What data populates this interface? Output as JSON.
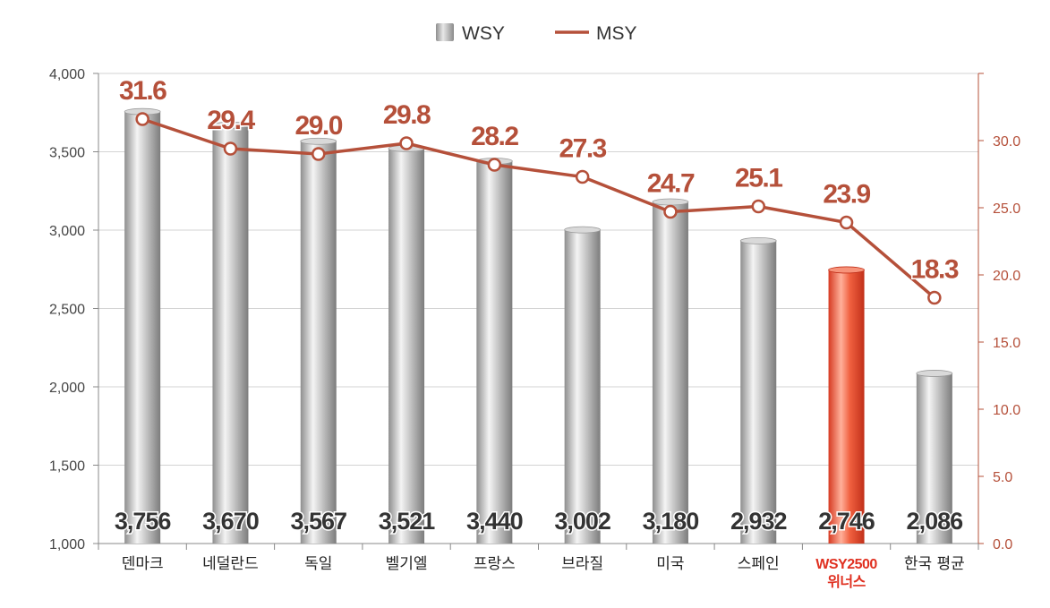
{
  "chart_data": {
    "type": "bar",
    "categories": [
      [
        "덴마크"
      ],
      [
        "네덜란드"
      ],
      [
        "독일"
      ],
      [
        "벨기엘"
      ],
      [
        "프랑스"
      ],
      [
        "브라질"
      ],
      [
        "미국"
      ],
      [
        "스페인"
      ],
      [
        "WSY2500",
        "위너스"
      ],
      [
        "한국 평균"
      ]
    ],
    "highlight_index": 8,
    "series": [
      {
        "name": "WSY",
        "type": "bar",
        "axis": "left",
        "values": [
          3756,
          3670,
          3567,
          3521,
          3440,
          3002,
          3180,
          2932,
          2746,
          2086
        ],
        "labels": [
          "3,756",
          "3,670",
          "3,567",
          "3,521",
          "3,440",
          "3,002",
          "3,180",
          "2,932",
          "2,746",
          "2,086"
        ],
        "color": "#a9a9a9",
        "highlight_color": "#e8402e"
      },
      {
        "name": "MSY",
        "type": "line",
        "axis": "right",
        "values": [
          31.6,
          29.4,
          29.0,
          29.8,
          28.2,
          27.3,
          24.7,
          25.1,
          23.9,
          18.3
        ],
        "labels": [
          "31.6",
          "29.4",
          "29.0",
          "29.8",
          "28.2",
          "27.3",
          "24.7",
          "25.1",
          "23.9",
          "18.3"
        ],
        "color": "#b5503a"
      }
    ],
    "y_left": {
      "range": [
        1000,
        4000
      ],
      "ticks": [
        1000,
        1500,
        2000,
        2500,
        3000,
        3500,
        4000
      ],
      "tick_labels": [
        "1,000",
        "1,500",
        "2,000",
        "2,500",
        "3,000",
        "3,500",
        "4,000"
      ]
    },
    "y_right": {
      "range": [
        0,
        35
      ],
      "ticks": [
        0,
        5,
        10,
        15,
        20,
        25,
        30
      ],
      "tick_labels": [
        "0.0",
        "5.0",
        "10.0",
        "15.0",
        "20.0",
        "25.0",
        "30.0"
      ]
    },
    "grid": true,
    "legend": {
      "position": "top-center",
      "entries": [
        "WSY",
        "MSY"
      ]
    }
  }
}
